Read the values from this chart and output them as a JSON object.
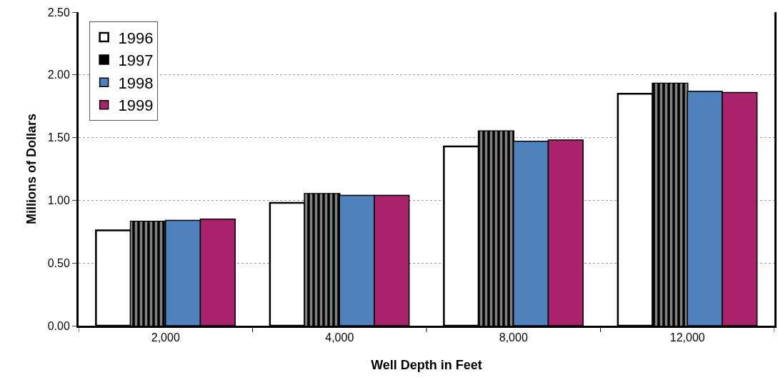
{
  "chart_data": {
    "type": "bar",
    "xlabel": "Well Depth in Feet",
    "ylabel": "Millions of Dollars",
    "categories": [
      "2,000",
      "4,000",
      "8,000",
      "12,000"
    ],
    "series": [
      {
        "name": "1996",
        "color": "#ffffff",
        "values": [
          0.76,
          0.98,
          1.43,
          1.85
        ]
      },
      {
        "name": "1997",
        "color": "#000000",
        "values": [
          0.83,
          1.05,
          1.55,
          1.93
        ]
      },
      {
        "name": "1998",
        "color": "#4f81bd",
        "values": [
          0.84,
          1.04,
          1.47,
          1.87
        ]
      },
      {
        "name": "1999",
        "color": "#a8236b",
        "values": [
          0.85,
          1.04,
          1.48,
          1.86
        ]
      }
    ],
    "ylim": [
      0,
      2.5
    ],
    "yticks": [
      {
        "value": 0,
        "label": "0.00"
      },
      {
        "value": 0.5,
        "label": "0.50"
      },
      {
        "value": 1,
        "label": "1.00"
      },
      {
        "value": 1.5,
        "label": "1.50"
      },
      {
        "value": 2,
        "label": "2.00"
      },
      {
        "value": 2.5,
        "label": "2.50"
      }
    ],
    "grid": "y",
    "legend": "top left"
  }
}
